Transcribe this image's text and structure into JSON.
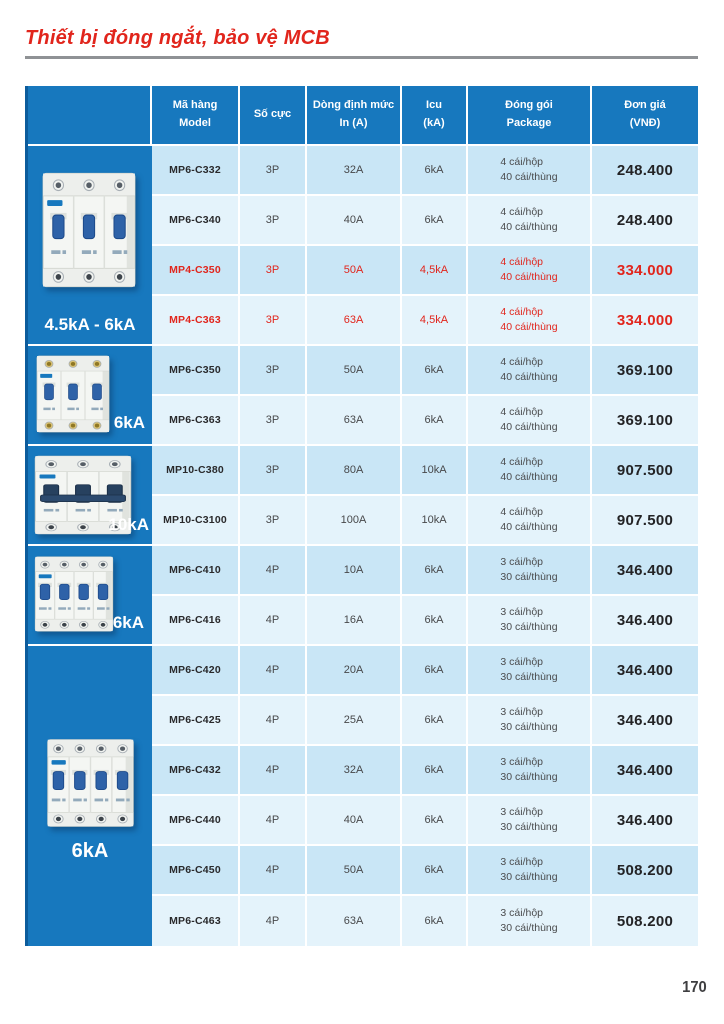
{
  "page": {
    "title": "Thiết bị đóng ngắt, bảo vệ MCB",
    "page_number": "170"
  },
  "colors": {
    "header_blue": "#1778be",
    "edge_dark_blue": "#0c5c9c",
    "row_odd_blue": "#c9e6f6",
    "row_even_blue": "#e4f3fb",
    "highlight_red": "#e1251c",
    "title_red": "#e1251c"
  },
  "table": {
    "headers": {
      "model": {
        "line1": "Mã hàng",
        "line2": "Model"
      },
      "poles": {
        "line1": "Số cực",
        "line2": ""
      },
      "current": {
        "line1": "Dòng định mức",
        "line2": "In (A)"
      },
      "icu": {
        "line1": "Icu",
        "line2": "(kA)"
      },
      "package": {
        "line1": "Đóng gói",
        "line2": "Package"
      },
      "price": {
        "line1": "Đơn giá",
        "line2": "(VNĐ)"
      }
    },
    "rows": [
      {
        "model": "MP6-C332",
        "poles": "3P",
        "in": "32A",
        "icu": "6kA",
        "pkg1": "4 cái/hộp",
        "pkg2": "40 cái/thùng",
        "price": "248.400",
        "highlight": false
      },
      {
        "model": "MP6-C340",
        "poles": "3P",
        "in": "40A",
        "icu": "6kA",
        "pkg1": "4 cái/hộp",
        "pkg2": "40 cái/thùng",
        "price": "248.400",
        "highlight": false
      },
      {
        "model": "MP4-C350",
        "poles": "3P",
        "in": "50A",
        "icu": "4,5kA",
        "pkg1": "4 cái/hộp",
        "pkg2": "40 cái/thùng",
        "price": "334.000",
        "highlight": true
      },
      {
        "model": "MP4-C363",
        "poles": "3P",
        "in": "63A",
        "icu": "4,5kA",
        "pkg1": "4 cái/hộp",
        "pkg2": "40 cái/thùng",
        "price": "334.000",
        "highlight": true
      },
      {
        "model": "MP6-C350",
        "poles": "3P",
        "in": "50A",
        "icu": "6kA",
        "pkg1": "4 cái/hộp",
        "pkg2": "40 cái/thùng",
        "price": "369.100",
        "highlight": false
      },
      {
        "model": "MP6-C363",
        "poles": "3P",
        "in": "63A",
        "icu": "6kA",
        "pkg1": "4 cái/hộp",
        "pkg2": "40 cái/thùng",
        "price": "369.100",
        "highlight": false
      },
      {
        "model": "MP10-C380",
        "poles": "3P",
        "in": "80A",
        "icu": "10kA",
        "pkg1": "4 cái/hộp",
        "pkg2": "40 cái/thùng",
        "price": "907.500",
        "highlight": false
      },
      {
        "model": "MP10-C3100",
        "poles": "3P",
        "in": "100A",
        "icu": "10kA",
        "pkg1": "4 cái/hộp",
        "pkg2": "40 cái/thùng",
        "price": "907.500",
        "highlight": false
      },
      {
        "model": "MP6-C410",
        "poles": "4P",
        "in": "10A",
        "icu": "6kA",
        "pkg1": "3 cái/hộp",
        "pkg2": "30 cái/thùng",
        "price": "346.400",
        "highlight": false
      },
      {
        "model": "MP6-C416",
        "poles": "4P",
        "in": "16A",
        "icu": "6kA",
        "pkg1": "3 cái/hộp",
        "pkg2": "30 cái/thùng",
        "price": "346.400",
        "highlight": false
      },
      {
        "model": "MP6-C420",
        "poles": "4P",
        "in": "20A",
        "icu": "6kA",
        "pkg1": "3 cái/hộp",
        "pkg2": "30 cái/thùng",
        "price": "346.400",
        "highlight": false
      },
      {
        "model": "MP6-C425",
        "poles": "4P",
        "in": "25A",
        "icu": "6kA",
        "pkg1": "3 cái/hộp",
        "pkg2": "30 cái/thùng",
        "price": "346.400",
        "highlight": false
      },
      {
        "model": "MP6-C432",
        "poles": "4P",
        "in": "32A",
        "icu": "6kA",
        "pkg1": "3 cái/hộp",
        "pkg2": "30 cái/thùng",
        "price": "346.400",
        "highlight": false
      },
      {
        "model": "MP6-C440",
        "poles": "4P",
        "in": "40A",
        "icu": "6kA",
        "pkg1": "3 cái/hộp",
        "pkg2": "30 cái/thùng",
        "price": "346.400",
        "highlight": false
      },
      {
        "model": "MP6-C450",
        "poles": "4P",
        "in": "50A",
        "icu": "6kA",
        "pkg1": "3 cái/hộp",
        "pkg2": "30 cái/thùng",
        "price": "508.200",
        "highlight": false
      },
      {
        "model": "MP6-C463",
        "poles": "4P",
        "in": "63A",
        "icu": "6kA",
        "pkg1": "3 cái/hộp",
        "pkg2": "30 cái/thùng",
        "price": "508.200",
        "highlight": false
      }
    ]
  },
  "sidebar": {
    "sections": [
      {
        "label": "4.5kA - 6kA",
        "image": "mcb-3-pole-photo",
        "poles": 3,
        "variant": "blue"
      },
      {
        "label": "6kA",
        "image": "mcb-3-pole-photo",
        "poles": 3,
        "variant": "brass"
      },
      {
        "label": "10kA",
        "image": "mcb-3-pole-heavy-duty-photo",
        "poles": 3,
        "variant": "heavy"
      },
      {
        "label": "6kA",
        "image": "mcb-4-pole-photo",
        "poles": 4,
        "variant": "blue"
      },
      {
        "label": "6kA",
        "image": "mcb-4-pole-photo",
        "poles": 4,
        "variant": "blue"
      }
    ]
  }
}
